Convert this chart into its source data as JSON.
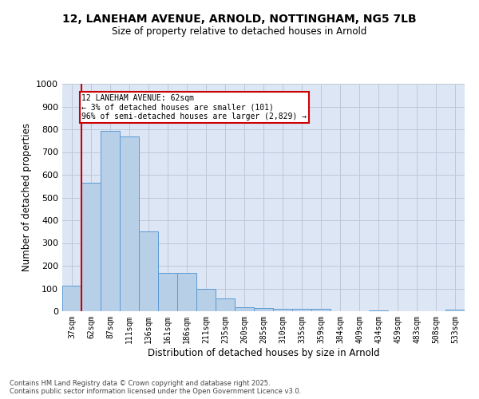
{
  "title_line1": "12, LANEHAM AVENUE, ARNOLD, NOTTINGHAM, NG5 7LB",
  "title_line2": "Size of property relative to detached houses in Arnold",
  "xlabel": "Distribution of detached houses by size in Arnold",
  "ylabel": "Number of detached properties",
  "categories": [
    "37sqm",
    "62sqm",
    "87sqm",
    "111sqm",
    "136sqm",
    "161sqm",
    "186sqm",
    "211sqm",
    "235sqm",
    "260sqm",
    "285sqm",
    "310sqm",
    "335sqm",
    "359sqm",
    "384sqm",
    "409sqm",
    "434sqm",
    "459sqm",
    "483sqm",
    "508sqm",
    "533sqm"
  ],
  "values": [
    113,
    565,
    793,
    770,
    350,
    170,
    170,
    98,
    55,
    17,
    14,
    12,
    10,
    10,
    0,
    0,
    5,
    0,
    0,
    0,
    8
  ],
  "bar_color": "#b8cfe8",
  "bar_edge_color": "#5b9bd5",
  "red_line_index": 1,
  "annotation_text": "12 LANEHAM AVENUE: 62sqm\n← 3% of detached houses are smaller (101)\n96% of semi-detached houses are larger (2,829) →",
  "annotation_box_color": "#ffffff",
  "annotation_box_edge": "#cc0000",
  "annotation_text_color": "#000000",
  "red_line_color": "#cc0000",
  "grid_color": "#c0c8d8",
  "background_color": "#dce6f5",
  "fig_background": "#ffffff",
  "ylim": [
    0,
    1000
  ],
  "yticks": [
    0,
    100,
    200,
    300,
    400,
    500,
    600,
    700,
    800,
    900,
    1000
  ],
  "footnote_line1": "Contains HM Land Registry data © Crown copyright and database right 2025.",
  "footnote_line2": "Contains public sector information licensed under the Open Government Licence v3.0."
}
